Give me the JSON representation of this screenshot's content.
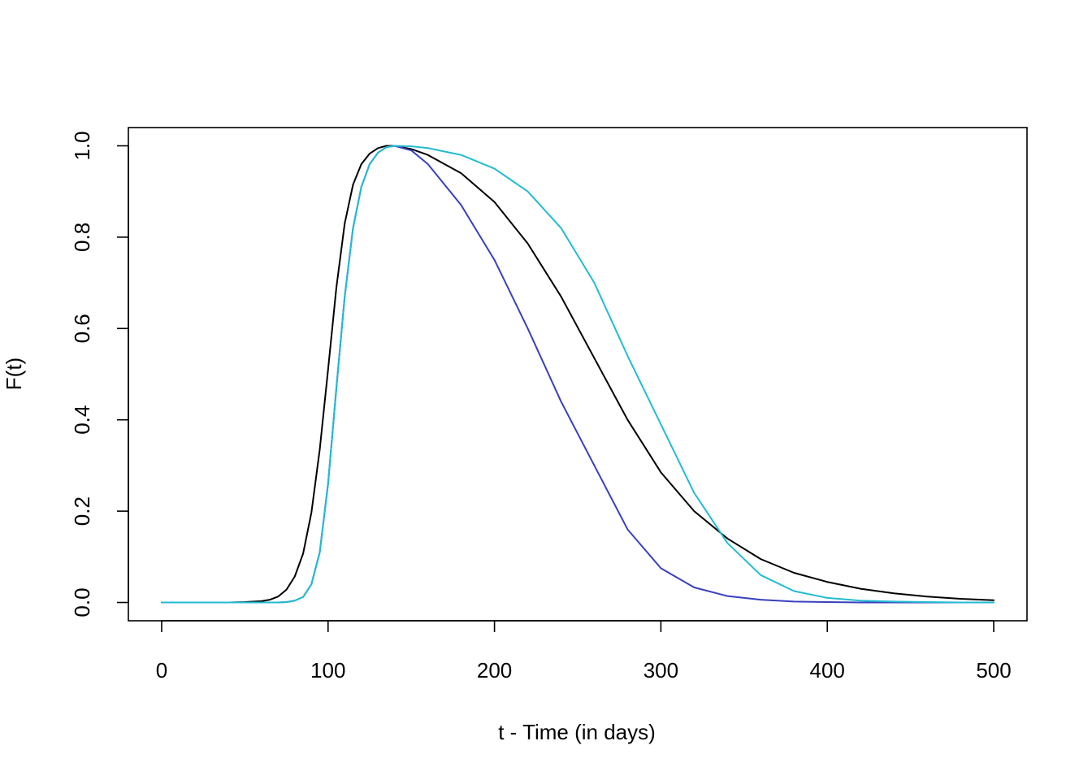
{
  "chart_data": {
    "type": "line",
    "title": "",
    "xlabel": "t - Time (in days)",
    "ylabel": "F(t)",
    "xlim": [
      -20,
      520
    ],
    "ylim": [
      -0.04,
      1.04
    ],
    "x_ticks": [
      0,
      100,
      200,
      300,
      400,
      500
    ],
    "x_tick_labels": [
      "0",
      "100",
      "200",
      "300",
      "400",
      "500"
    ],
    "y_ticks": [
      0.0,
      0.2,
      0.4,
      0.6,
      0.8,
      1.0
    ],
    "y_tick_labels": [
      "0.0",
      "0.2",
      "0.4",
      "0.6",
      "0.8",
      "1.0"
    ],
    "grid": false,
    "legend": "none",
    "series": [
      {
        "color": "#000000",
        "x": [
          0,
          20,
          40,
          50,
          60,
          65,
          70,
          75,
          80,
          85,
          90,
          95,
          100,
          105,
          110,
          115,
          120,
          125,
          130,
          135,
          140,
          150,
          160,
          180,
          200,
          220,
          240,
          260,
          280,
          300,
          320,
          340,
          360,
          380,
          400,
          420,
          440,
          460,
          480,
          500
        ],
        "y": [
          0,
          0,
          0,
          0.001,
          0.003,
          0.006,
          0.013,
          0.028,
          0.057,
          0.107,
          0.197,
          0.335,
          0.51,
          0.69,
          0.83,
          0.915,
          0.96,
          0.983,
          0.995,
          1.0,
          1.0,
          0.993,
          0.98,
          0.94,
          0.877,
          0.786,
          0.67,
          0.535,
          0.4,
          0.285,
          0.2,
          0.14,
          0.095,
          0.065,
          0.045,
          0.03,
          0.02,
          0.013,
          0.008,
          0.005
        ]
      },
      {
        "color": "#3a3fbf",
        "x": [
          0,
          40,
          60,
          70,
          75,
          80,
          85,
          90,
          95,
          100,
          105,
          110,
          115,
          120,
          125,
          130,
          135,
          140,
          150,
          160,
          180,
          200,
          220,
          240,
          260,
          280,
          300,
          320,
          340,
          360,
          380,
          400,
          420,
          440,
          460,
          480,
          500
        ],
        "y": [
          0,
          0,
          0,
          0,
          0.001,
          0.004,
          0.012,
          0.04,
          0.11,
          0.26,
          0.47,
          0.67,
          0.82,
          0.91,
          0.96,
          0.985,
          0.997,
          1.0,
          0.99,
          0.96,
          0.87,
          0.75,
          0.6,
          0.44,
          0.3,
          0.16,
          0.075,
          0.033,
          0.014,
          0.006,
          0.002,
          0.001,
          0,
          0,
          0,
          0,
          0
        ]
      },
      {
        "color": "#22bcd0",
        "x": [
          0,
          40,
          60,
          70,
          75,
          80,
          85,
          90,
          95,
          100,
          105,
          110,
          115,
          120,
          125,
          130,
          135,
          140,
          150,
          160,
          180,
          200,
          220,
          240,
          260,
          280,
          300,
          320,
          340,
          360,
          380,
          400,
          420,
          440,
          460,
          480,
          500
        ],
        "y": [
          0,
          0,
          0,
          0,
          0.001,
          0.004,
          0.012,
          0.04,
          0.11,
          0.26,
          0.47,
          0.67,
          0.82,
          0.91,
          0.96,
          0.985,
          0.997,
          1.0,
          0.999,
          0.995,
          0.98,
          0.95,
          0.9,
          0.82,
          0.7,
          0.54,
          0.39,
          0.24,
          0.13,
          0.06,
          0.025,
          0.01,
          0.004,
          0.002,
          0.001,
          0,
          0
        ]
      }
    ]
  }
}
